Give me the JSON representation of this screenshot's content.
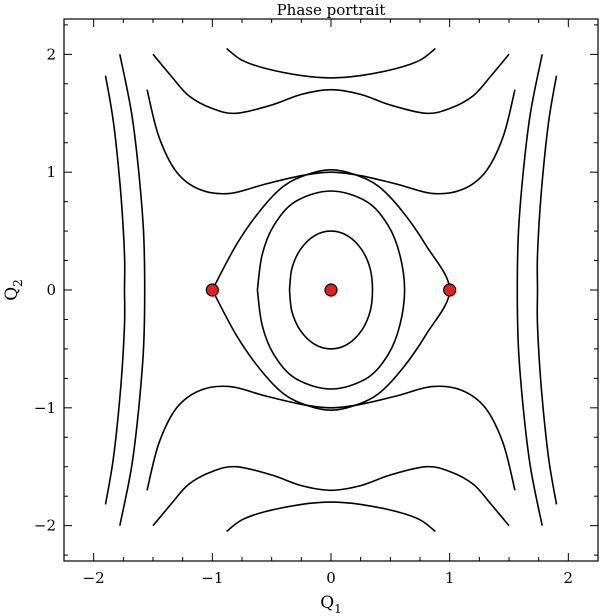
{
  "chart_data": {
    "type": "line",
    "title": "Phase portrait",
    "xlabel": "Q",
    "xlabel_sub": "1",
    "ylabel": "Q",
    "ylabel_sub": "2",
    "xlim": [
      -2.25,
      2.25
    ],
    "ylim": [
      -2.3,
      2.3
    ],
    "xticks": [
      -2,
      -1,
      0,
      1,
      2
    ],
    "yticks": [
      -2,
      -1,
      0,
      1,
      2
    ],
    "xtick_labels": [
      "−2",
      "−1",
      "0",
      "1",
      "2"
    ],
    "ytick_labels": [
      "−2",
      "−1",
      "0",
      "1",
      "2"
    ],
    "minor_step": 0.25,
    "grid": false,
    "equilibrium_color": "#e8201c",
    "equilibria": [
      {
        "x": -1,
        "y": 0
      },
      {
        "x": 0,
        "y": 0
      },
      {
        "x": 1,
        "y": 0
      }
    ],
    "curves": [
      {
        "points": [
          [
            -0.62,
            0.0
          ],
          [
            -0.58,
            0.3
          ],
          [
            -0.48,
            0.55
          ],
          [
            -0.3,
            0.75
          ],
          [
            0.0,
            0.84
          ],
          [
            0.3,
            0.75
          ],
          [
            0.48,
            0.55
          ],
          [
            0.58,
            0.3
          ],
          [
            0.62,
            0.0
          ],
          [
            0.58,
            -0.3
          ],
          [
            0.48,
            -0.55
          ],
          [
            0.3,
            -0.75
          ],
          [
            0.0,
            -0.84
          ],
          [
            -0.3,
            -0.75
          ],
          [
            -0.48,
            -0.55
          ],
          [
            -0.58,
            -0.3
          ],
          [
            -0.62,
            0.0
          ]
        ]
      },
      {
        "points": [
          [
            -0.35,
            0.0
          ],
          [
            -0.33,
            0.18
          ],
          [
            -0.26,
            0.34
          ],
          [
            -0.14,
            0.46
          ],
          [
            0.0,
            0.5
          ],
          [
            0.14,
            0.46
          ],
          [
            0.26,
            0.34
          ],
          [
            0.33,
            0.18
          ],
          [
            0.35,
            0.0
          ],
          [
            0.33,
            -0.18
          ],
          [
            0.26,
            -0.34
          ],
          [
            0.14,
            -0.46
          ],
          [
            0.0,
            -0.5
          ],
          [
            -0.14,
            -0.46
          ],
          [
            -0.26,
            -0.34
          ],
          [
            -0.33,
            -0.18
          ],
          [
            -0.35,
            0.0
          ]
        ]
      },
      {
        "points": [
          [
            -1.0,
            0.0
          ],
          [
            -0.8,
            0.38
          ],
          [
            -0.6,
            0.67
          ],
          [
            -0.4,
            0.88
          ],
          [
            -0.2,
            0.98
          ],
          [
            0.0,
            1.02
          ],
          [
            0.2,
            0.98
          ],
          [
            0.4,
            0.88
          ],
          [
            0.6,
            0.67
          ],
          [
            0.8,
            0.38
          ],
          [
            1.0,
            0.0
          ],
          [
            0.8,
            -0.38
          ],
          [
            0.6,
            -0.67
          ],
          [
            0.4,
            -0.88
          ],
          [
            0.2,
            -0.98
          ],
          [
            0.0,
            -1.02
          ],
          [
            -0.2,
            -0.98
          ],
          [
            -0.4,
            -0.88
          ],
          [
            -0.6,
            -0.67
          ],
          [
            -0.8,
            -0.38
          ],
          [
            -1.0,
            0.0
          ]
        ]
      },
      {
        "points": [
          [
            -1.55,
            1.7
          ],
          [
            -1.45,
            1.3
          ],
          [
            -1.3,
            1.0
          ],
          [
            -1.1,
            0.85
          ],
          [
            -0.85,
            0.82
          ],
          [
            -0.55,
            0.9
          ],
          [
            -0.25,
            0.97
          ],
          [
            0.0,
            1.0
          ],
          [
            0.25,
            0.97
          ],
          [
            0.55,
            0.9
          ],
          [
            0.85,
            0.82
          ],
          [
            1.1,
            0.85
          ],
          [
            1.3,
            1.0
          ],
          [
            1.45,
            1.3
          ],
          [
            1.55,
            1.7
          ]
        ]
      },
      {
        "points": [
          [
            -1.55,
            -1.7
          ],
          [
            -1.45,
            -1.3
          ],
          [
            -1.3,
            -1.0
          ],
          [
            -1.1,
            -0.85
          ],
          [
            -0.85,
            -0.82
          ],
          [
            -0.55,
            -0.9
          ],
          [
            -0.25,
            -0.97
          ],
          [
            0.0,
            -1.0
          ],
          [
            0.25,
            -0.97
          ],
          [
            0.55,
            -0.9
          ],
          [
            0.85,
            -0.82
          ],
          [
            1.1,
            -0.85
          ],
          [
            1.3,
            -1.0
          ],
          [
            1.45,
            -1.3
          ],
          [
            1.55,
            -1.7
          ]
        ]
      },
      {
        "points": [
          [
            -1.5,
            2.0
          ],
          [
            -1.35,
            1.82
          ],
          [
            -1.2,
            1.65
          ],
          [
            -1.0,
            1.54
          ],
          [
            -0.8,
            1.5
          ],
          [
            -0.5,
            1.57
          ],
          [
            -0.25,
            1.66
          ],
          [
            0.0,
            1.7
          ],
          [
            0.25,
            1.66
          ],
          [
            0.5,
            1.57
          ],
          [
            0.8,
            1.5
          ],
          [
            1.0,
            1.54
          ],
          [
            1.2,
            1.65
          ],
          [
            1.35,
            1.82
          ],
          [
            1.5,
            2.0
          ]
        ]
      },
      {
        "points": [
          [
            -1.5,
            -2.0
          ],
          [
            -1.35,
            -1.82
          ],
          [
            -1.2,
            -1.65
          ],
          [
            -1.0,
            -1.54
          ],
          [
            -0.8,
            -1.5
          ],
          [
            -0.5,
            -1.57
          ],
          [
            -0.25,
            -1.66
          ],
          [
            0.0,
            -1.7
          ],
          [
            0.25,
            -1.66
          ],
          [
            0.5,
            -1.57
          ],
          [
            0.8,
            -1.5
          ],
          [
            1.0,
            -1.54
          ],
          [
            1.2,
            -1.65
          ],
          [
            1.35,
            -1.82
          ],
          [
            1.5,
            -2.0
          ]
        ]
      },
      {
        "points": [
          [
            -0.88,
            2.05
          ],
          [
            -0.75,
            1.95
          ],
          [
            -0.55,
            1.88
          ],
          [
            -0.25,
            1.82
          ],
          [
            0.0,
            1.8
          ],
          [
            0.25,
            1.82
          ],
          [
            0.55,
            1.88
          ],
          [
            0.75,
            1.95
          ],
          [
            0.88,
            2.05
          ]
        ]
      },
      {
        "points": [
          [
            -0.88,
            -2.05
          ],
          [
            -0.75,
            -1.95
          ],
          [
            -0.55,
            -1.88
          ],
          [
            -0.25,
            -1.82
          ],
          [
            0.0,
            -1.8
          ],
          [
            0.25,
            -1.82
          ],
          [
            0.55,
            -1.88
          ],
          [
            0.75,
            -1.95
          ],
          [
            0.88,
            -2.05
          ]
        ]
      },
      {
        "points": [
          [
            -1.78,
            2.0
          ],
          [
            -1.68,
            1.5
          ],
          [
            -1.62,
            1.0
          ],
          [
            -1.58,
            0.5
          ],
          [
            -1.57,
            0.0
          ],
          [
            -1.58,
            -0.5
          ],
          [
            -1.62,
            -1.0
          ],
          [
            -1.68,
            -1.5
          ],
          [
            -1.78,
            -2.0
          ]
        ]
      },
      {
        "points": [
          [
            1.78,
            2.0
          ],
          [
            1.68,
            1.5
          ],
          [
            1.62,
            1.0
          ],
          [
            1.58,
            0.5
          ],
          [
            1.57,
            0.0
          ],
          [
            1.58,
            -0.5
          ],
          [
            1.62,
            -1.0
          ],
          [
            1.68,
            -1.5
          ],
          [
            1.78,
            -2.0
          ]
        ]
      },
      {
        "points": [
          [
            -1.9,
            1.82
          ],
          [
            -1.83,
            1.4
          ],
          [
            -1.77,
            0.8
          ],
          [
            -1.74,
            0.3
          ],
          [
            -1.74,
            0.0
          ],
          [
            -1.74,
            -0.3
          ],
          [
            -1.77,
            -0.8
          ],
          [
            -1.83,
            -1.4
          ],
          [
            -1.9,
            -1.82
          ]
        ]
      },
      {
        "points": [
          [
            1.9,
            1.82
          ],
          [
            1.83,
            1.4
          ],
          [
            1.77,
            0.8
          ],
          [
            1.74,
            0.3
          ],
          [
            1.74,
            0.0
          ],
          [
            1.74,
            -0.3
          ],
          [
            1.77,
            -0.8
          ],
          [
            1.83,
            -1.4
          ],
          [
            1.9,
            -1.82
          ]
        ]
      }
    ]
  }
}
